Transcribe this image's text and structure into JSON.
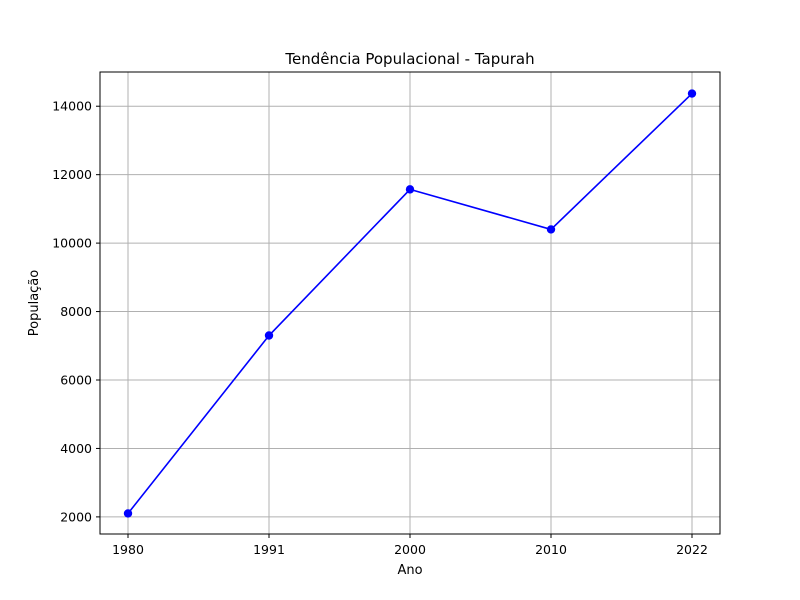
{
  "chart_data": {
    "type": "line",
    "title": "Tendência Populacional - Tapurah",
    "xlabel": "Ano",
    "ylabel": "População",
    "categories": [
      "1980",
      "1991",
      "2000",
      "2010",
      "2022"
    ],
    "series": [
      {
        "values": [
          2100,
          7300,
          11570,
          10400,
          14370
        ]
      }
    ],
    "yticks": [
      2000,
      4000,
      6000,
      8000,
      10000,
      12000,
      14000
    ],
    "ylim": [
      1500,
      15000
    ],
    "grid": true,
    "colors": {
      "line": "#0000ff",
      "grid": "#b0b0b0",
      "axis": "#000000"
    }
  }
}
